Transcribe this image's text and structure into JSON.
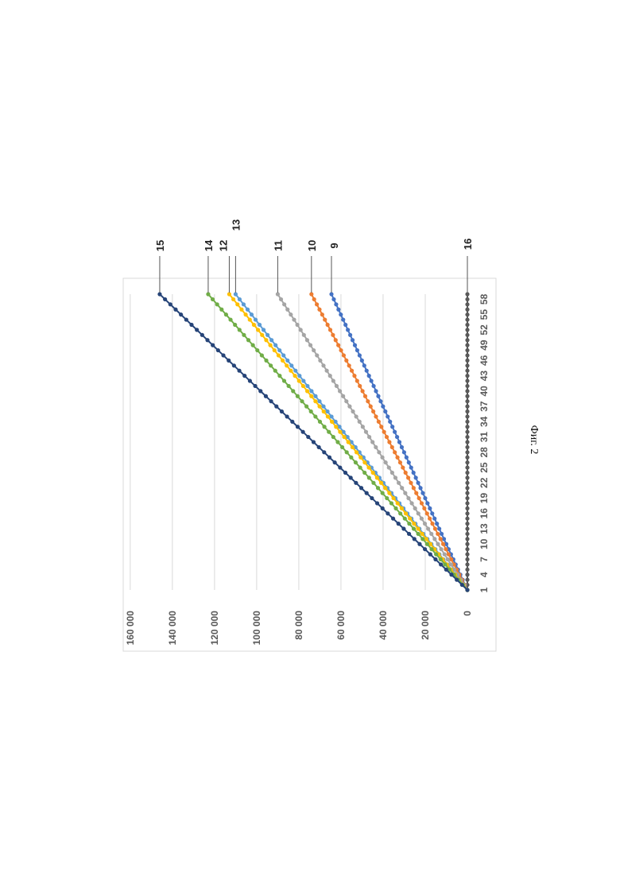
{
  "chart_data": {
    "type": "line",
    "orientation": "rotated-90-ccw",
    "x": [
      1,
      2,
      3,
      4,
      5,
      6,
      7,
      8,
      9,
      10,
      11,
      12,
      13,
      14,
      15,
      16,
      17,
      18,
      19,
      20,
      21,
      22,
      23,
      24,
      25,
      26,
      27,
      28,
      29,
      30,
      31,
      32,
      33,
      34,
      35,
      36,
      37,
      38,
      39,
      40,
      41,
      42,
      43,
      44,
      45,
      46,
      47,
      48,
      49,
      50,
      51,
      52,
      53,
      54,
      55,
      56,
      57,
      58,
      59
    ],
    "x_tick_labels": [
      "1",
      "4",
      "7",
      "10",
      "13",
      "16",
      "19",
      "22",
      "25",
      "28",
      "31",
      "34",
      "37",
      "40",
      "43",
      "46",
      "49",
      "52",
      "55",
      "58"
    ],
    "y_tick_labels": [
      "0",
      "20 000",
      "40 000",
      "60 000",
      "80 000",
      "100 000",
      "120 000",
      "140 000",
      "160 000"
    ],
    "ylim": [
      0,
      160000
    ],
    "grid": "horizontal",
    "legend": "none",
    "series": [
      {
        "name": "9",
        "color": "#4472c4",
        "start": 0,
        "end": 64500
      },
      {
        "name": "10",
        "color": "#ed7d31",
        "start": 0,
        "end": 74000
      },
      {
        "name": "11",
        "color": "#a5a5a5",
        "start": 0,
        "end": 90000
      },
      {
        "name": "12",
        "color": "#ffc000",
        "start": 0,
        "end": 113000
      },
      {
        "name": "13",
        "color": "#5b9bd5",
        "start": 0,
        "end": 110000
      },
      {
        "name": "14",
        "color": "#70ad47",
        "start": 0,
        "end": 123000
      },
      {
        "name": "15",
        "color": "#264478",
        "start": 0,
        "end": 146000
      },
      {
        "name": "16",
        "color": "#595959",
        "start": 0,
        "end": 0
      }
    ]
  },
  "caption": "Фиг. 2"
}
